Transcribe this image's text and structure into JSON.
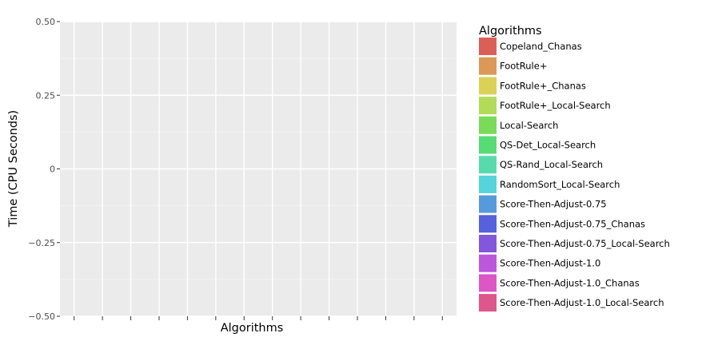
{
  "chart_data": {
    "type": "bar",
    "title": "",
    "xlabel": "Algorithms",
    "ylabel": "Time (CPU Seconds)",
    "ylim": [
      -0.5,
      0.5
    ],
    "yticks": [
      -0.5,
      -0.25,
      0,
      0.25,
      0.5
    ],
    "ytick_labels": [
      "−0.50",
      "−0.25",
      "0",
      "0.25",
      "0.50"
    ],
    "x_tick_count": 14,
    "grid": true,
    "legend": {
      "title": "Algorithms",
      "placement": "right",
      "entries": [
        {
          "label": "Copeland_Chanas",
          "color": "#db5f57"
        },
        {
          "label": "FootRule+",
          "color": "#db9857"
        },
        {
          "label": "FootRule+_Chanas",
          "color": "#dbd157"
        },
        {
          "label": "FootRule+_Local-Search",
          "color": "#b2db57"
        },
        {
          "label": "Local-Search",
          "color": "#79db57"
        },
        {
          "label": "QS-Det_Local-Search",
          "color": "#57db74"
        },
        {
          "label": "QS-Rand_Local-Search",
          "color": "#57dbad"
        },
        {
          "label": "RandomSort_Local-Search",
          "color": "#57d3db"
        },
        {
          "label": "Score-Then-Adjust-0.75",
          "color": "#579adb"
        },
        {
          "label": "Score-Then-Adjust-0.75_Chanas",
          "color": "#5761db"
        },
        {
          "label": "Score-Then-Adjust-0.75_Local-Search",
          "color": "#8257db"
        },
        {
          "label": "Score-Then-Adjust-1.0",
          "color": "#bc57db"
        },
        {
          "label": "Score-Then-Adjust-1.0_Chanas",
          "color": "#db57c6"
        },
        {
          "label": "Score-Then-Adjust-1.0_Local-Search",
          "color": "#db578c"
        }
      ]
    },
    "series": []
  },
  "colors": {
    "panel_background": "#ebebeb",
    "grid_major": "#ffffff",
    "grid_minor": "#f5f5f5",
    "tick": "#333333"
  }
}
